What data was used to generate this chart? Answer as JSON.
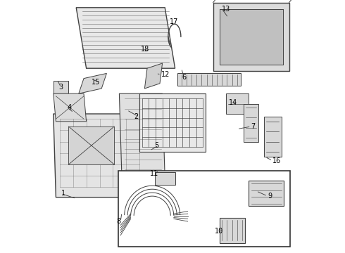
{
  "bg_color": "#ffffff",
  "line_color": "#404040",
  "fill_light": "#e8e8e8",
  "fill_mid": "#d8d8d8",
  "fill_dark": "#c8c8c8",
  "label_color": "#000000"
}
